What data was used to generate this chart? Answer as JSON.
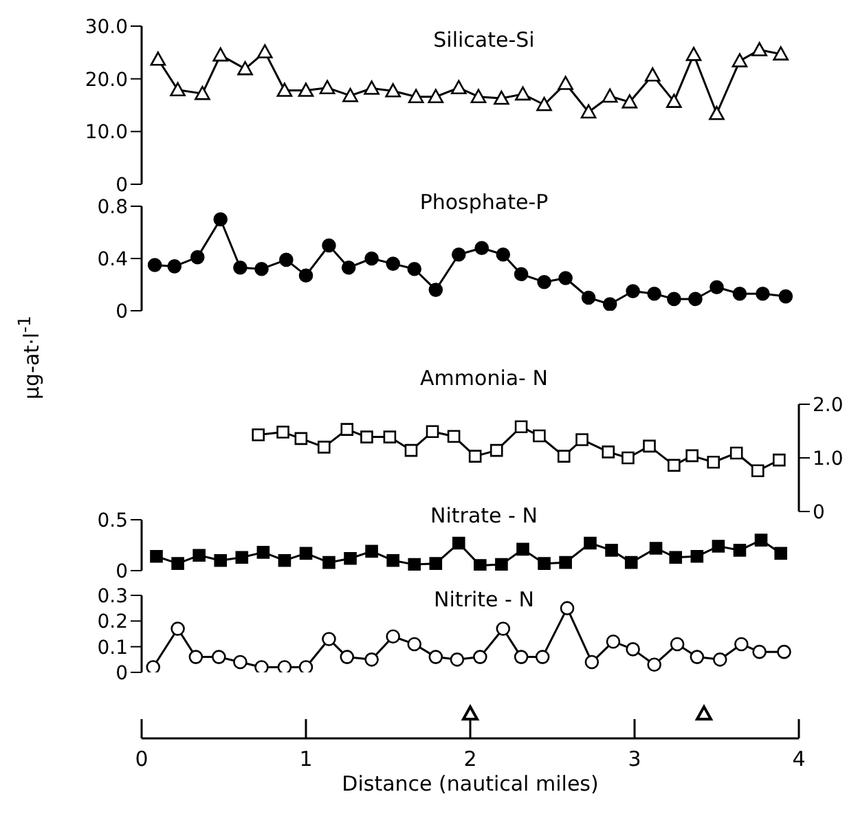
{
  "chart_data": [
    {
      "type": "line",
      "title": "Silicate-Si",
      "xlim": [
        0,
        4
      ],
      "ylim": [
        0,
        30
      ],
      "yticks": [
        {
          "value": 0,
          "label": "0"
        },
        {
          "value": 10,
          "label": "10.0"
        },
        {
          "value": 20,
          "label": "20.0"
        },
        {
          "value": 30,
          "label": "30.0"
        }
      ],
      "tick_labels": "y",
      "marker": "triangle",
      "series": [
        {
          "color": "#ffffff",
          "x": [
            0.1,
            0.22,
            0.37,
            0.48,
            0.63,
            0.75,
            0.87,
            1.0,
            1.13,
            1.27,
            1.4,
            1.53,
            1.67,
            1.79,
            1.93,
            2.05,
            2.19,
            2.32,
            2.45,
            2.58,
            2.72,
            2.85,
            2.97,
            3.11,
            3.24,
            3.36,
            3.5,
            3.64,
            3.76,
            3.89
          ],
          "values": [
            23.7,
            17.9,
            17.2,
            24.5,
            21.9,
            25.1,
            17.8,
            17.8,
            18.3,
            16.8,
            18.2,
            17.7,
            16.6,
            16.6,
            18.3,
            16.6,
            16.3,
            17.1,
            15.1,
            19.1,
            13.7,
            16.7,
            15.6,
            20.7,
            15.7,
            24.6,
            13.4,
            23.4,
            25.5,
            24.7
          ]
        }
      ]
    },
    {
      "type": "line",
      "title": "Phosphate-P",
      "ylabel": "μg-at·l$^{-1}$",
      "xlim": [
        0,
        4
      ],
      "ylim": [
        0,
        0.8
      ],
      "yticks": [
        0,
        0.4,
        0.8
      ],
      "tick_labels": "y",
      "marker": "circle",
      "series": [
        {
          "color": "#000000",
          "x": [
            0.08,
            0.2,
            0.34,
            0.48,
            0.6,
            0.73,
            0.88,
            1.0,
            1.14,
            1.26,
            1.4,
            1.53,
            1.66,
            1.79,
            1.93,
            2.07,
            2.2,
            2.31,
            2.45,
            2.58,
            2.72,
            2.85,
            2.99,
            3.12,
            3.24,
            3.37,
            3.5,
            3.64,
            3.78,
            3.92
          ],
          "values": [
            0.35,
            0.34,
            0.41,
            0.7,
            0.33,
            0.32,
            0.39,
            0.27,
            0.5,
            0.33,
            0.4,
            0.36,
            0.32,
            0.16,
            0.43,
            0.48,
            0.43,
            0.28,
            0.22,
            0.25,
            0.1,
            0.05,
            0.15,
            0.13,
            0.09,
            0.09,
            0.18,
            0.13,
            0.13,
            0.11
          ]
        }
      ]
    },
    {
      "type": "line",
      "title": "Ammonia- N",
      "xlim": [
        0,
        4
      ],
      "y2lim": [
        0,
        2
      ],
      "y2ticks": [
        {
          "value": 0,
          "label": "0"
        },
        {
          "value": 1,
          "label": "1.0"
        },
        {
          "value": 2,
          "label": "2.0"
        }
      ],
      "tick_labels": "y",
      "marker": "square",
      "series": [
        {
          "color": "#ffffff",
          "axis": "y2",
          "x": [
            0.71,
            0.86,
            0.97,
            1.11,
            1.25,
            1.37,
            1.51,
            1.64,
            1.77,
            1.9,
            2.03,
            2.16,
            2.31,
            2.42,
            2.57,
            2.68,
            2.84,
            2.96,
            3.09,
            3.24,
            3.35,
            3.48,
            3.62,
            3.75,
            3.88
          ],
          "values": [
            1.43,
            1.48,
            1.36,
            1.2,
            1.53,
            1.39,
            1.39,
            1.14,
            1.49,
            1.4,
            1.03,
            1.14,
            1.58,
            1.41,
            1.03,
            1.34,
            1.11,
            1.0,
            1.22,
            0.86,
            1.04,
            0.92,
            1.09,
            0.76,
            0.96
          ]
        }
      ]
    },
    {
      "type": "line",
      "title": "Nitrate - N",
      "xlim": [
        0,
        4
      ],
      "ylim": [
        0,
        0.5
      ],
      "yticks": [
        0,
        0.5
      ],
      "tick_labels": "y",
      "marker": "square",
      "series": [
        {
          "color": "#000000",
          "x": [
            0.09,
            0.22,
            0.35,
            0.48,
            0.61,
            0.74,
            0.87,
            1.0,
            1.14,
            1.27,
            1.4,
            1.53,
            1.66,
            1.79,
            1.93,
            2.06,
            2.19,
            2.32,
            2.45,
            2.58,
            2.73,
            2.86,
            2.98,
            3.13,
            3.25,
            3.38,
            3.51,
            3.64,
            3.77,
            3.89
          ],
          "values": [
            0.14,
            0.07,
            0.15,
            0.1,
            0.13,
            0.18,
            0.1,
            0.17,
            0.08,
            0.12,
            0.19,
            0.1,
            0.06,
            0.07,
            0.27,
            0.05,
            0.06,
            0.21,
            0.07,
            0.08,
            0.27,
            0.2,
            0.08,
            0.22,
            0.13,
            0.14,
            0.24,
            0.2,
            0.3,
            0.17
          ]
        }
      ]
    },
    {
      "type": "line",
      "title": "Nitrite - N",
      "xlabel": "Distance (nautical miles)",
      "xlim": [
        0,
        4
      ],
      "xticks": [
        0,
        1,
        2,
        3,
        4
      ],
      "ylim": [
        0,
        0.3
      ],
      "yticks": [
        0,
        0.1,
        0.2,
        0.3
      ],
      "marker": "circle",
      "series": [
        {
          "color": "#ffffff",
          "x": [
            0.07,
            0.22,
            0.33,
            0.47,
            0.6,
            0.73,
            0.87,
            1.0,
            1.14,
            1.25,
            1.4,
            1.53,
            1.66,
            1.79,
            1.92,
            2.06,
            2.2,
            2.31,
            2.44,
            2.59,
            2.74,
            2.87,
            2.99,
            3.12,
            3.26,
            3.38,
            3.52,
            3.65,
            3.76,
            3.91
          ],
          "values": [
            0.02,
            0.17,
            0.06,
            0.06,
            0.04,
            0.02,
            0.02,
            0.02,
            0.13,
            0.06,
            0.05,
            0.14,
            0.11,
            0.06,
            0.05,
            0.06,
            0.17,
            0.06,
            0.06,
            0.25,
            0.04,
            0.12,
            0.09,
            0.03,
            0.11,
            0.06,
            0.05,
            0.11,
            0.08,
            0.08
          ]
        }
      ]
    }
  ]
}
